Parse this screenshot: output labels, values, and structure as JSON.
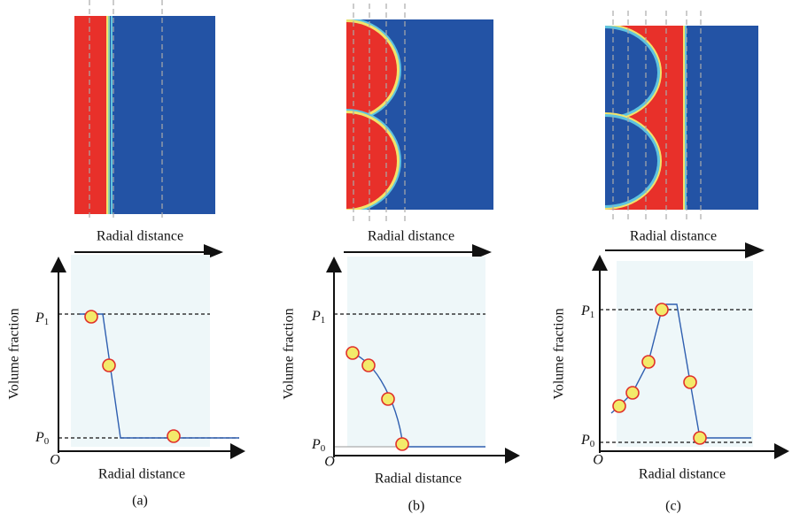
{
  "panels": [
    {
      "top_label": "Radial distance",
      "y_label": "Volume fraction",
      "x_label": "Radial distance",
      "origin": "O",
      "p1": {
        "symbol": "P",
        "sub": "1"
      },
      "p0": {
        "symbol": "P",
        "sub": "0"
      },
      "caption": "(a)"
    },
    {
      "top_label": "Radial distance",
      "y_label": "Volume fraction",
      "x_label": "Radial distance",
      "origin": "O",
      "p1": {
        "symbol": "P",
        "sub": "1"
      },
      "p0": {
        "symbol": "P",
        "sub": "0"
      },
      "caption": "(b)"
    },
    {
      "top_label": "Radial distance",
      "y_label": "Volume fraction",
      "x_label": "Radial distance",
      "origin": "O",
      "p1": {
        "symbol": "P",
        "sub": "1"
      },
      "p0": {
        "symbol": "P",
        "sub": "0"
      },
      "caption": "(c)"
    }
  ]
}
